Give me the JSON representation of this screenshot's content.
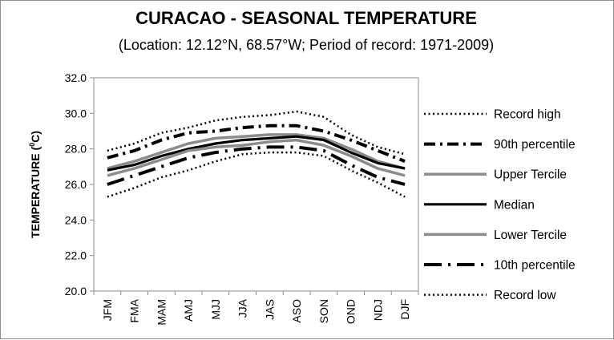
{
  "chart_data": {
    "type": "line",
    "title": "CURACAO - SEASONAL TEMPERATURE",
    "subtitle": "(Location: 12.12°N, 68.57°W; Period of record: 1971-2009)",
    "ylabel_main": "TEMPERATURE (",
    "ylabel_sup": "0",
    "ylabel_tail": "C)",
    "xlabel": "",
    "ylim": [
      20.0,
      32.0
    ],
    "yticks": [
      "20.0",
      "22.0",
      "24.0",
      "26.0",
      "28.0",
      "30.0",
      "32.0"
    ],
    "grid": false,
    "legend_position": "right",
    "categories": [
      "JFM",
      "FMA",
      "MAM",
      "AMJ",
      "MJJ",
      "JJA",
      "JAS",
      "ASO",
      "SON",
      "OND",
      "NDJ",
      "DJF"
    ],
    "series": [
      {
        "name": "Record high",
        "style": "dotted",
        "color": "#000000",
        "values": [
          27.9,
          28.3,
          28.9,
          29.2,
          29.6,
          29.8,
          29.9,
          30.1,
          29.8,
          28.8,
          28.1,
          27.7
        ]
      },
      {
        "name": "90th percentile",
        "style": "dash-dot",
        "color": "#000000",
        "values": [
          27.5,
          27.9,
          28.5,
          28.9,
          29.0,
          29.2,
          29.3,
          29.3,
          29.0,
          28.5,
          27.9,
          27.3
        ]
      },
      {
        "name": "Upper Tercile",
        "style": "solid",
        "color": "#8c8c8c",
        "values": [
          26.9,
          27.3,
          27.8,
          28.3,
          28.6,
          28.7,
          28.8,
          28.8,
          28.6,
          28.0,
          27.3,
          26.9
        ]
      },
      {
        "name": "Median",
        "style": "solid",
        "color": "#000000",
        "values": [
          26.8,
          27.1,
          27.6,
          28.0,
          28.3,
          28.5,
          28.6,
          28.7,
          28.5,
          27.8,
          27.2,
          26.9
        ]
      },
      {
        "name": "Lower Tercile",
        "style": "solid",
        "color": "#8c8c8c",
        "values": [
          26.5,
          26.9,
          27.4,
          27.9,
          28.1,
          28.2,
          28.4,
          28.5,
          28.2,
          27.6,
          26.9,
          26.5
        ]
      },
      {
        "name": "10th percentile",
        "style": "long-dash-dot",
        "color": "#000000",
        "values": [
          26.0,
          26.5,
          27.0,
          27.5,
          27.8,
          28.0,
          28.1,
          28.1,
          27.9,
          27.1,
          26.4,
          26.0
        ]
      },
      {
        "name": "Record low",
        "style": "dotted",
        "color": "#000000",
        "values": [
          25.3,
          25.8,
          26.4,
          26.8,
          27.3,
          27.7,
          27.8,
          27.8,
          27.6,
          26.8,
          26.1,
          25.3
        ]
      }
    ]
  }
}
